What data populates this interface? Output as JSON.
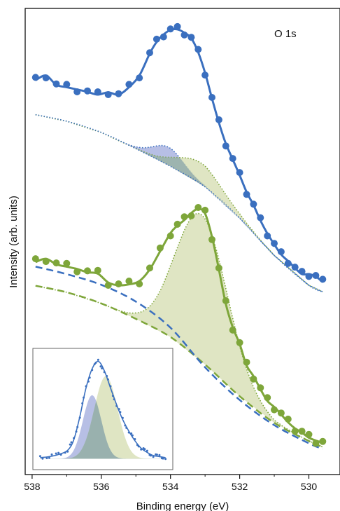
{
  "chart_data": {
    "type": "scatter",
    "title": "",
    "region_label": "O 1s",
    "xlabel": "Binding energy (eV)",
    "ylabel": "Intensity (arb. units)",
    "x_reversed": true,
    "xlim": [
      538.2,
      529.1
    ],
    "xticks": [
      "538",
      "536",
      "534",
      "532",
      "530"
    ],
    "ylim": [
      0,
      1
    ],
    "yticks_shown": false,
    "grid": false,
    "legend": "none",
    "colors": {
      "blue": "#3a6fbf",
      "green": "#7ea63a",
      "blue_fill": "#aab4e0",
      "green_fill": "#d9e0b8",
      "overlap_fill": "#86a3a8"
    },
    "main": {
      "upper": {
        "x": [
          537.9,
          537.6,
          537.3,
          537.0,
          536.7,
          536.4,
          536.1,
          535.8,
          535.5,
          535.2,
          534.9,
          534.6,
          534.4,
          534.2,
          534.0,
          533.8,
          533.6,
          533.4,
          533.2,
          533.0,
          532.8,
          532.6,
          532.4,
          532.2,
          532.0,
          531.8,
          531.6,
          531.4,
          531.2,
          531.0,
          530.8,
          530.6,
          530.4,
          530.2,
          530.0,
          529.8,
          529.6
        ],
        "y": [
          0.846,
          0.856,
          0.836,
          0.831,
          0.826,
          0.821,
          0.815,
          0.82,
          0.815,
          0.831,
          0.856,
          0.903,
          0.928,
          0.944,
          0.954,
          0.955,
          0.948,
          0.936,
          0.906,
          0.862,
          0.807,
          0.755,
          0.71,
          0.676,
          0.642,
          0.606,
          0.578,
          0.545,
          0.517,
          0.494,
          0.472,
          0.458,
          0.443,
          0.43,
          0.43,
          0.425,
          0.413
        ],
        "background": {
          "x": [
            537.9,
            537.0,
            536.0,
            535.0,
            534.0,
            533.0,
            532.0,
            531.0,
            530.0,
            529.6
          ],
          "y": [
            0.772,
            0.758,
            0.734,
            0.699,
            0.661,
            0.617,
            0.55,
            0.47,
            0.406,
            0.392
          ]
        },
        "components": [
          {
            "color": "blue",
            "center_eV": 534.05,
            "height": 0.039,
            "sigma": 0.45
          },
          {
            "color": "green",
            "center_eV": 533.15,
            "height": 0.046,
            "sigma": 0.65
          }
        ]
      },
      "lower": {
        "x": [
          537.9,
          537.6,
          537.3,
          537.0,
          536.7,
          536.4,
          536.1,
          535.8,
          535.5,
          535.2,
          534.9,
          534.6,
          534.3,
          534.0,
          533.8,
          533.6,
          533.4,
          533.2,
          533.0,
          532.8,
          532.6,
          532.4,
          532.2,
          532.0,
          531.8,
          531.6,
          531.4,
          531.2,
          531.0,
          530.8,
          530.6,
          530.4,
          530.2,
          530.0,
          529.8,
          529.6
        ],
        "y": [
          0.456,
          0.463,
          0.451,
          0.446,
          0.441,
          0.434,
          0.431,
          0.412,
          0.406,
          0.408,
          0.415,
          0.44,
          0.479,
          0.518,
          0.534,
          0.546,
          0.561,
          0.57,
          0.56,
          0.51,
          0.44,
          0.366,
          0.316,
          0.28,
          0.234,
          0.211,
          0.183,
          0.158,
          0.145,
          0.129,
          0.112,
          0.099,
          0.09,
          0.079,
          0.073,
          0.068
        ],
        "background_dashed_blue": {
          "x": [
            537.9,
            537.0,
            536.0,
            535.0,
            534.0,
            533.0,
            532.0,
            531.0,
            530.0,
            529.6
          ],
          "y": [
            0.446,
            0.43,
            0.407,
            0.371,
            0.315,
            0.23,
            0.16,
            0.106,
            0.067,
            0.055
          ]
        },
        "background_dashed_green": {
          "x": [
            537.9,
            537.0,
            536.0,
            535.0,
            534.0,
            533.0,
            532.0,
            531.0,
            530.0,
            529.6
          ],
          "y": [
            0.405,
            0.391,
            0.367,
            0.334,
            0.295,
            0.236,
            0.168,
            0.111,
            0.072,
            0.059
          ]
        },
        "components": [
          {
            "color": "green",
            "center_eV": 533.1,
            "height": 0.315,
            "sigma": 0.75
          }
        ]
      }
    },
    "inset": {
      "x": [
        537.9,
        537.6,
        537.3,
        537.0,
        536.8,
        536.6,
        536.4,
        536.2,
        536.0,
        535.8,
        535.6,
        535.4,
        535.2,
        535.0,
        534.8,
        534.6,
        534.4,
        534.2,
        534.0,
        533.8
      ],
      "y": [
        0.06,
        0.07,
        0.09,
        0.13,
        0.23,
        0.45,
        0.72,
        0.9,
        0.97,
        0.88,
        0.72,
        0.56,
        0.42,
        0.31,
        0.22,
        0.15,
        0.11,
        0.08,
        0.07,
        0.06
      ],
      "components": [
        {
          "color": "blue",
          "center_eV": 536.2,
          "height": 0.6,
          "sigma": 0.3
        },
        {
          "color": "green",
          "center_eV": 535.75,
          "height": 0.78,
          "sigma": 0.38
        }
      ]
    }
  }
}
